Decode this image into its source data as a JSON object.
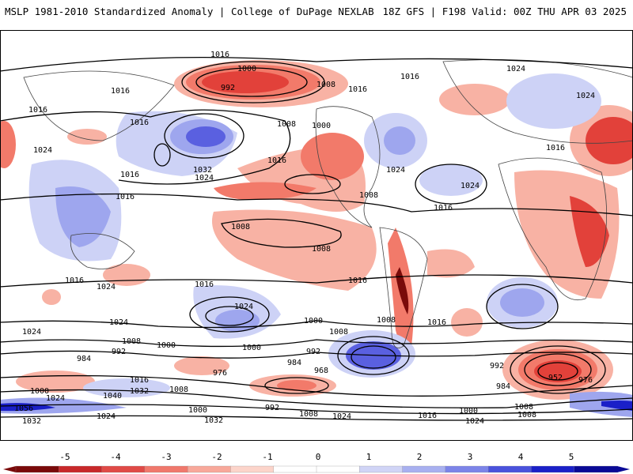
{
  "header": {
    "left_title": "MSLP 1981-2010 Standardized Anomaly | College of DuPage NEXLAB",
    "right_title": "18Z GFS | F198 Valid: 00Z THU APR 03 2025"
  },
  "contour_labels": [
    "1016",
    "1000",
    "992",
    "1008",
    "1016",
    "1016",
    "1024",
    "1024",
    "1016",
    "1016",
    "1008",
    "1000",
    "1016",
    "1024",
    "1032",
    "1024",
    "1016",
    "1016",
    "1016",
    "1024",
    "1024",
    "1016",
    "1008",
    "1008",
    "1008",
    "1016",
    "1016",
    "1016",
    "1024",
    "1024",
    "1024",
    "1000",
    "1008",
    "1008",
    "1016",
    "1016",
    "992",
    "1000",
    "1008",
    "984",
    "992",
    "1024",
    "1000",
    "976",
    "984",
    "968",
    "992",
    "976",
    "952",
    "984",
    "1000",
    "1032",
    "1024",
    "1040",
    "1056",
    "1016",
    "1008",
    "1000",
    "992",
    "1008",
    "1008",
    "1024",
    "1016",
    "1032",
    "1032",
    "1024",
    "1024",
    "1000",
    "1008"
  ],
  "colorbar": {
    "ticks": [
      "-5",
      "-4",
      "-3",
      "-2",
      "-1",
      "0",
      "1",
      "2",
      "3",
      "4",
      "5"
    ],
    "colors": [
      "#7a0a0a",
      "#c8282a",
      "#e04a46",
      "#f0786c",
      "#f8a89a",
      "#fcd4ca",
      "#ffffff",
      "#ffffff",
      "#d0d4f6",
      "#a8b0f0",
      "#7c84e8",
      "#4a52dc",
      "#1a20c8",
      "#0a0a96"
    ]
  },
  "colors": {
    "neg_strong": "#e2413a",
    "neg_mid": "#f27a6a",
    "neg_light": "#f8b2a4",
    "pos_light": "#cdd2f6",
    "pos_mid": "#9ea6ee",
    "pos_strong": "#5a60e0"
  }
}
